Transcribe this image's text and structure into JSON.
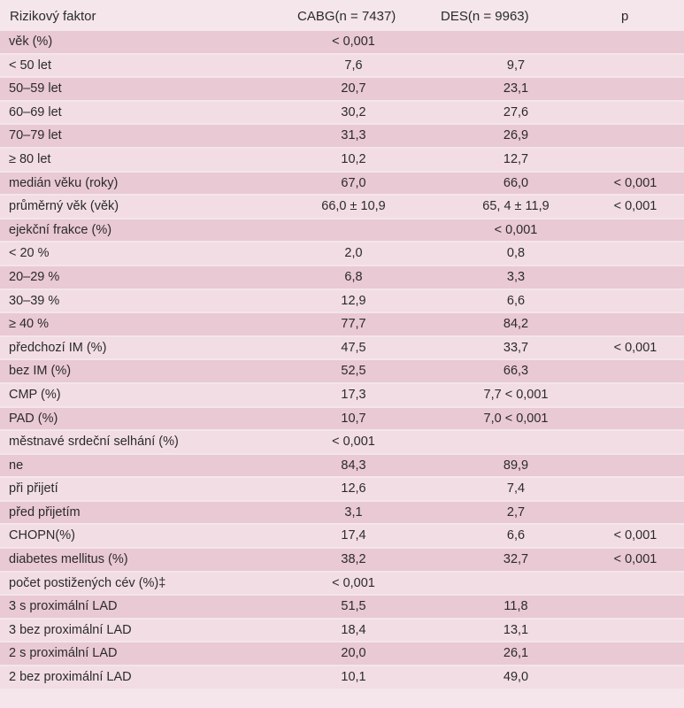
{
  "header": {
    "factor": "Rizikový faktor",
    "cabg": "CABG(n = 7437)",
    "des": "DES(n = 9963)",
    "p": "p"
  },
  "rows": [
    {
      "factor": "věk (%)",
      "cabg": "< 0,001",
      "des": "",
      "p": ""
    },
    {
      "factor": "< 50 let",
      "cabg": "7,6",
      "des": "9,7",
      "p": ""
    },
    {
      "factor": "50–59 let",
      "cabg": "20,7",
      "des": "23,1",
      "p": ""
    },
    {
      "factor": "60–69 let",
      "cabg": "30,2",
      "des": "27,6",
      "p": ""
    },
    {
      "factor": "70–79 let",
      "cabg": "31,3",
      "des": "26,9",
      "p": ""
    },
    {
      "factor": "≥ 80 let",
      "cabg": "10,2",
      "des": "12,7",
      "p": ""
    },
    {
      "factor": "medián věku (roky)",
      "cabg": "67,0",
      "des": "66,0",
      "p": "< 0,001"
    },
    {
      "factor": "průměrný věk (věk)",
      "cabg": "66,0 ± 10,9",
      "des": "65, 4 ± 11,9",
      "p": "< 0,001"
    },
    {
      "factor": "ejekční frakce (%)",
      "cabg": "",
      "des": "< 0,001",
      "p": ""
    },
    {
      "factor": "< 20 %",
      "cabg": "2,0",
      "des": "0,8",
      "p": ""
    },
    {
      "factor": "20–29 %",
      "cabg": "6,8",
      "des": "3,3",
      "p": ""
    },
    {
      "factor": "30–39 %",
      "cabg": "12,9",
      "des": "6,6",
      "p": ""
    },
    {
      "factor": "≥ 40 %",
      "cabg": "77,7",
      "des": "84,2",
      "p": ""
    },
    {
      "factor": "předchozí IM (%)",
      "cabg": "47,5",
      "des": "33,7",
      "p": "< 0,001"
    },
    {
      "factor": "bez IM (%)",
      "cabg": "52,5",
      "des": "66,3",
      "p": ""
    },
    {
      "factor": "CMP (%)",
      "cabg": "17,3",
      "des": "7,7 < 0,001",
      "p": ""
    },
    {
      "factor": "PAD (%)",
      "cabg": "10,7",
      "des": "7,0 < 0,001",
      "p": ""
    },
    {
      "factor": "městnavé srdeční selhání (%)",
      "cabg": "< 0,001",
      "des": "",
      "p": ""
    },
    {
      "factor": "ne",
      "cabg": "84,3",
      "des": "89,9",
      "p": ""
    },
    {
      "factor": "při přijetí",
      "cabg": "12,6",
      "des": "7,4",
      "p": ""
    },
    {
      "factor": "před přijetím",
      "cabg": "3,1",
      "des": "2,7",
      "p": ""
    },
    {
      "factor": "CHOPN(%)",
      "cabg": "17,4",
      "des": "6,6",
      "p": "< 0,001"
    },
    {
      "factor": "diabetes mellitus (%)",
      "cabg": "38,2",
      "des": "32,7",
      "p": "< 0,001"
    },
    {
      "factor": "počet postižených cév (%)‡",
      "cabg": "< 0,001",
      "des": "",
      "p": ""
    },
    {
      "factor": "3 s proximální LAD",
      "cabg": "51,5",
      "des": "11,8",
      "p": ""
    },
    {
      "factor": "3 bez proximální LAD",
      "cabg": "18,4",
      "des": "13,1",
      "p": ""
    },
    {
      "factor": "2 s proximální LAD",
      "cabg": "20,0",
      "des": "26,1",
      "p": ""
    },
    {
      "factor": "2 bez proximální LAD",
      "cabg": "10,1",
      "des": "49,0",
      "p": ""
    }
  ]
}
